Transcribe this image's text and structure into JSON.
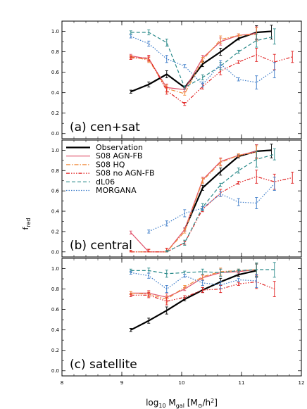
{
  "chart_data": {
    "type": "line",
    "ylabel": "f",
    "ylabel_sub": "red",
    "xlabel_parts": [
      "log",
      "10",
      " M",
      "gal",
      " [M",
      "⊙",
      "/h",
      "2",
      "]"
    ],
    "xlim": [
      8,
      12
    ],
    "ylim": [
      -0.05,
      1.1
    ],
    "x_ticks": [
      "8",
      "9",
      "10",
      "11",
      "12"
    ],
    "y_ticks": [
      "0.0",
      "0.2",
      "0.4",
      "0.6",
      "0.8",
      "1.0"
    ],
    "legend": {
      "placement": "top-left of panel b",
      "entries": [
        "Observation",
        "S08 AGN-FB",
        "S08 HQ",
        "S08 no AGN-FB",
        "dL06",
        "MORGANA"
      ]
    },
    "series_style": [
      {
        "color": "#000000",
        "dash": "none",
        "width": 2.2
      },
      {
        "color": "#e0506a",
        "dash": "none",
        "width": 1.2
      },
      {
        "color": "#f08a3a",
        "dash": "6,2,1.5,2",
        "width": 1.2
      },
      {
        "color": "#e02020",
        "dash": "5,2,1.5,2,1.5,2,1.5,2",
        "width": 1.2
      },
      {
        "color": "#2a8a8a",
        "dash": "5,3",
        "width": 1.2
      },
      {
        "color": "#3a7ac8",
        "dash": "1.5,2",
        "width": 1.2
      }
    ],
    "panels": [
      {
        "label": "(a)  cen+sat",
        "series": [
          {
            "name": "Observation",
            "x": [
              9.15,
              9.45,
              9.75,
              10.05,
              10.35,
              10.65,
              10.95,
              11.25,
              11.5
            ],
            "y": [
              0.41,
              0.48,
              0.58,
              0.45,
              0.68,
              0.8,
              0.93,
              0.99,
              1.0
            ]
          },
          {
            "name": "S08 AGN-FB",
            "x": [
              9.15,
              9.45,
              9.75,
              10.05,
              10.35,
              10.65,
              10.95,
              11.25
            ],
            "y": [
              0.76,
              0.73,
              0.45,
              0.43,
              0.74,
              0.9,
              0.96,
              0.98
            ]
          },
          {
            "name": "S08 HQ",
            "x": [
              9.15,
              9.45,
              9.75,
              10.05,
              10.35,
              10.65,
              10.95,
              11.25
            ],
            "y": [
              0.75,
              0.72,
              0.44,
              0.39,
              0.72,
              0.92,
              0.96,
              0.97
            ]
          },
          {
            "name": "S08 no AGN-FB",
            "x": [
              9.15,
              9.45,
              9.75,
              10.05,
              10.35,
              10.65,
              10.95,
              11.25,
              11.55,
              11.85
            ],
            "y": [
              0.74,
              0.74,
              0.42,
              0.29,
              0.46,
              0.61,
              0.7,
              0.77,
              0.7,
              0.75
            ]
          },
          {
            "name": "dL06",
            "x": [
              9.15,
              9.45,
              9.75,
              10.05,
              10.35,
              10.65,
              10.95,
              11.25,
              11.55
            ],
            "y": [
              0.99,
              0.99,
              0.89,
              0.45,
              0.55,
              0.66,
              0.8,
              0.91,
              0.95
            ]
          },
          {
            "name": "MORGANA",
            "x": [
              9.15,
              9.45,
              9.75,
              10.05,
              10.35,
              10.65,
              10.95,
              11.25,
              11.55
            ],
            "y": [
              0.95,
              0.88,
              0.73,
              0.66,
              0.48,
              0.68,
              0.53,
              0.5,
              0.62
            ]
          }
        ]
      },
      {
        "label": "(b)  central",
        "series": [
          {
            "name": "Observation",
            "x": [
              10.05,
              10.35,
              10.65,
              10.95,
              11.25,
              11.5
            ],
            "y": [
              0.22,
              0.63,
              0.79,
              0.94,
              0.99,
              1.0
            ]
          },
          {
            "name": "S08 AGN-FB",
            "x": [
              9.15,
              9.45,
              9.75,
              10.05,
              10.35,
              10.65,
              10.95,
              11.25
            ],
            "y": [
              0.19,
              0.0,
              0.0,
              0.22,
              0.71,
              0.89,
              0.95,
              0.99
            ]
          },
          {
            "name": "S08 HQ",
            "x": [
              9.15,
              9.45,
              9.75,
              10.05,
              10.35,
              10.65,
              10.95,
              11.25
            ],
            "y": [
              0.0,
              0.0,
              0.0,
              0.2,
              0.7,
              0.88,
              0.95,
              0.98
            ]
          },
          {
            "name": "S08 no AGN-FB",
            "x": [
              9.15,
              9.45,
              9.75,
              10.05,
              10.35,
              10.65,
              10.95,
              11.25,
              11.55,
              11.85
            ],
            "y": [
              0.0,
              0.0,
              0.0,
              0.09,
              0.42,
              0.58,
              0.68,
              0.74,
              0.69,
              0.73
            ]
          },
          {
            "name": "dL06",
            "x": [
              9.75,
              10.05,
              10.35,
              10.65,
              10.95,
              11.25,
              11.55
            ],
            "y": [
              0.0,
              0.09,
              0.44,
              0.66,
              0.8,
              0.91,
              0.96
            ]
          },
          {
            "name": "MORGANA",
            "x": [
              9.45,
              9.75,
              10.05,
              10.35,
              10.65,
              10.95,
              11.25,
              11.55
            ],
            "y": [
              0.2,
              0.28,
              0.38,
              0.43,
              0.57,
              0.49,
              0.48,
              0.67
            ]
          }
        ]
      },
      {
        "label": "(c)  satellite",
        "series": [
          {
            "name": "Observation",
            "x": [
              9.15,
              9.45,
              9.75,
              10.05,
              10.35,
              10.65,
              10.95,
              11.25
            ],
            "y": [
              0.4,
              0.49,
              0.59,
              0.7,
              0.79,
              0.87,
              0.94,
              0.98
            ]
          },
          {
            "name": "S08 AGN-FB",
            "x": [
              9.15,
              9.45,
              9.75,
              10.05,
              10.35,
              10.65,
              10.95,
              11.25
            ],
            "y": [
              0.76,
              0.76,
              0.72,
              0.8,
              0.91,
              0.96,
              0.97,
              0.99
            ]
          },
          {
            "name": "S08 HQ",
            "x": [
              9.15,
              9.45,
              9.75,
              10.05,
              10.35,
              10.65,
              10.95,
              11.25
            ],
            "y": [
              0.76,
              0.75,
              0.7,
              0.82,
              0.92,
              0.97,
              0.98,
              0.99
            ]
          },
          {
            "name": "S08 no AGN-FB",
            "x": [
              9.15,
              9.45,
              9.75,
              10.05,
              10.35,
              10.65,
              10.95,
              11.25,
              11.55
            ],
            "y": [
              0.74,
              0.74,
              0.68,
              0.72,
              0.79,
              0.8,
              0.85,
              0.87,
              0.8
            ]
          },
          {
            "name": "dL06",
            "x": [
              9.15,
              9.45,
              9.75,
              10.05,
              10.35,
              10.65,
              10.95,
              11.25,
              11.55
            ],
            "y": [
              0.98,
              0.98,
              0.95,
              0.96,
              0.97,
              0.96,
              0.98,
              0.99,
              0.99
            ]
          },
          {
            "name": "MORGANA",
            "x": [
              9.15,
              9.45,
              9.75,
              10.05,
              10.35,
              10.65,
              10.95,
              11.25
            ],
            "y": [
              0.96,
              0.93,
              0.8,
              0.93,
              0.86,
              0.84,
              0.89,
              0.88
            ]
          }
        ]
      }
    ]
  }
}
